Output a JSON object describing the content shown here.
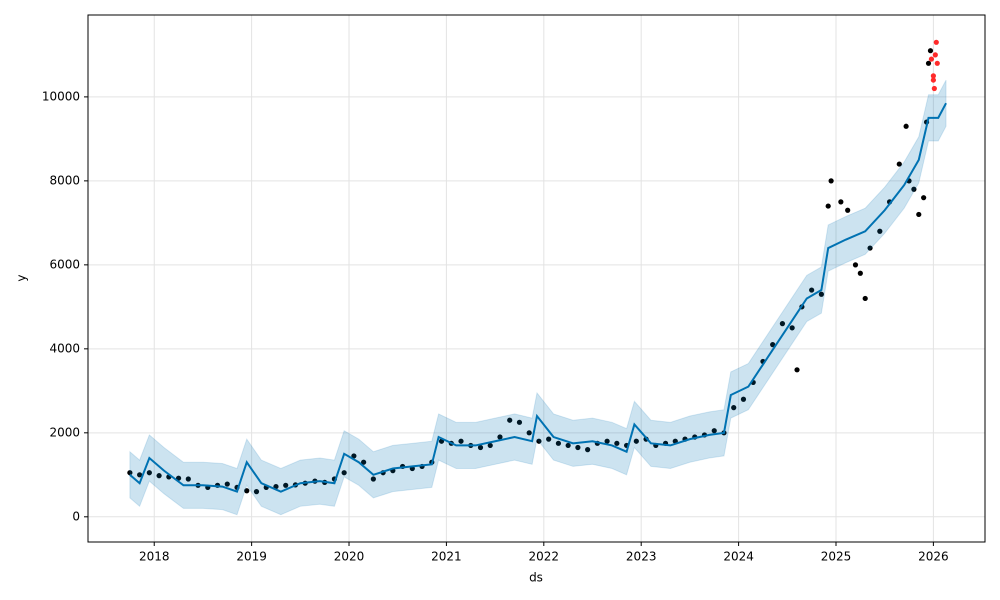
{
  "chart_data": {
    "type": "line",
    "x_label": "ds",
    "y_label": "y",
    "xlim": [
      2017.32,
      2026.53
    ],
    "xticks": [
      2018,
      2019,
      2020,
      2021,
      2022,
      2023,
      2024,
      2025,
      2026
    ],
    "ylim": [
      -600,
      11950
    ],
    "yticks": [
      0,
      2000,
      4000,
      6000,
      8000,
      10000
    ],
    "grid": true,
    "series": [
      {
        "color": "#000000",
        "marker": "dot",
        "x": [
          2017.75,
          2017.85,
          2017.95,
          2018.05,
          2018.15,
          2018.25,
          2018.35,
          2018.45,
          2018.55,
          2018.65,
          2018.75,
          2018.85,
          2018.95,
          2019.05,
          2019.15,
          2019.25,
          2019.35,
          2019.45,
          2019.55,
          2019.65,
          2019.75,
          2019.85,
          2019.95,
          2020.05,
          2020.15,
          2020.25,
          2020.35,
          2020.45,
          2020.55,
          2020.65,
          2020.75,
          2020.85,
          2020.95,
          2021.05,
          2021.15,
          2021.25,
          2021.35,
          2021.45,
          2021.55,
          2021.65,
          2021.75,
          2021.85,
          2021.95,
          2022.05,
          2022.15,
          2022.25,
          2022.35,
          2022.45,
          2022.55,
          2022.65,
          2022.75,
          2022.85,
          2022.95,
          2023.05,
          2023.15,
          2023.25,
          2023.35,
          2023.45,
          2023.55,
          2023.65,
          2023.75,
          2023.85,
          2023.95,
          2024.05,
          2024.15,
          2024.25,
          2024.35,
          2024.45,
          2024.55,
          2024.6,
          2024.65,
          2024.75,
          2024.85,
          2024.92,
          2024.95,
          2025.05,
          2025.12,
          2025.2,
          2025.25,
          2025.3,
          2025.35,
          2025.45,
          2025.55,
          2025.65,
          2025.72,
          2025.75,
          2025.8,
          2025.85,
          2025.9,
          2025.93,
          2025.95,
          2025.97
        ],
        "values": [
          1050,
          1000,
          1050,
          980,
          950,
          920,
          900,
          750,
          700,
          750,
          780,
          700,
          620,
          600,
          700,
          720,
          750,
          760,
          800,
          850,
          820,
          900,
          1050,
          1450,
          1300,
          900,
          1050,
          1100,
          1200,
          1150,
          1200,
          1300,
          1800,
          1750,
          1800,
          1700,
          1650,
          1700,
          1900,
          2300,
          2250,
          2000,
          1800,
          1850,
          1750,
          1700,
          1650,
          1600,
          1750,
          1800,
          1750,
          1700,
          1800,
          1850,
          1700,
          1750,
          1800,
          1850,
          1900,
          1950,
          2050,
          2000,
          2600,
          2800,
          3200,
          3700,
          4100,
          4600,
          4500,
          3500,
          5000,
          5400,
          5300,
          7400,
          8000,
          7500,
          7300,
          6000,
          5800,
          5200,
          6400,
          6800,
          7500,
          8400,
          9300,
          8000,
          7800,
          7200,
          7600,
          9400,
          10800,
          11100
        ]
      },
      {
        "color": "#ff2a2a",
        "marker": "dot",
        "x": [
          2025.98,
          2026.0,
          2026.01,
          2026.02,
          2026.03,
          2026.04,
          2026.0
        ],
        "values": [
          10900,
          10500,
          10200,
          11000,
          11300,
          10800,
          10400
        ]
      },
      {
        "color": "#0072b2",
        "marker": "line",
        "x": [
          2017.75,
          2017.85,
          2017.95,
          2018.1,
          2018.3,
          2018.5,
          2018.7,
          2018.85,
          2018.95,
          2019.1,
          2019.3,
          2019.5,
          2019.7,
          2019.85,
          2019.95,
          2020.1,
          2020.25,
          2020.45,
          2020.65,
          2020.85,
          2020.92,
          2021.1,
          2021.3,
          2021.5,
          2021.7,
          2021.88,
          2021.93,
          2022.1,
          2022.3,
          2022.5,
          2022.7,
          2022.85,
          2022.93,
          2023.1,
          2023.3,
          2023.5,
          2023.7,
          2023.85,
          2023.92,
          2024.1,
          2024.3,
          2024.5,
          2024.7,
          2024.85,
          2024.92,
          2025.1,
          2025.3,
          2025.5,
          2025.7,
          2025.85,
          2025.95,
          2026.05,
          2026.13
        ],
        "values": [
          1000,
          800,
          1400,
          1100,
          750,
          750,
          720,
          600,
          1300,
          800,
          600,
          800,
          850,
          800,
          1500,
          1300,
          1000,
          1150,
          1200,
          1250,
          1900,
          1700,
          1700,
          1800,
          1900,
          1800,
          2400,
          1900,
          1750,
          1800,
          1700,
          1550,
          2200,
          1750,
          1700,
          1850,
          1950,
          2000,
          2900,
          3100,
          3800,
          4500,
          5200,
          5400,
          6400,
          6600,
          6800,
          7300,
          7900,
          8500,
          9500,
          9500,
          9850
        ],
        "lower": [
          450,
          250,
          850,
          550,
          200,
          200,
          170,
          50,
          750,
          250,
          50,
          250,
          300,
          250,
          950,
          750,
          450,
          600,
          650,
          700,
          1350,
          1150,
          1150,
          1250,
          1350,
          1250,
          1850,
          1350,
          1200,
          1250,
          1150,
          1000,
          1650,
          1200,
          1150,
          1300,
          1400,
          1450,
          2350,
          2550,
          3250,
          3950,
          4650,
          4850,
          5850,
          6050,
          6250,
          6750,
          7350,
          7950,
          8950,
          8950,
          9300
        ],
        "upper": [
          1550,
          1350,
          1950,
          1650,
          1300,
          1300,
          1270,
          1150,
          1850,
          1350,
          1150,
          1350,
          1400,
          1350,
          2050,
          1850,
          1550,
          1700,
          1750,
          1800,
          2450,
          2250,
          2250,
          2350,
          2450,
          2350,
          2950,
          2450,
          2300,
          2350,
          2250,
          2100,
          2750,
          2300,
          2250,
          2400,
          2500,
          2550,
          3450,
          3650,
          4350,
          5050,
          5750,
          5950,
          6950,
          7150,
          7350,
          7850,
          8450,
          9050,
          10050,
          10050,
          10400
        ]
      }
    ]
  }
}
